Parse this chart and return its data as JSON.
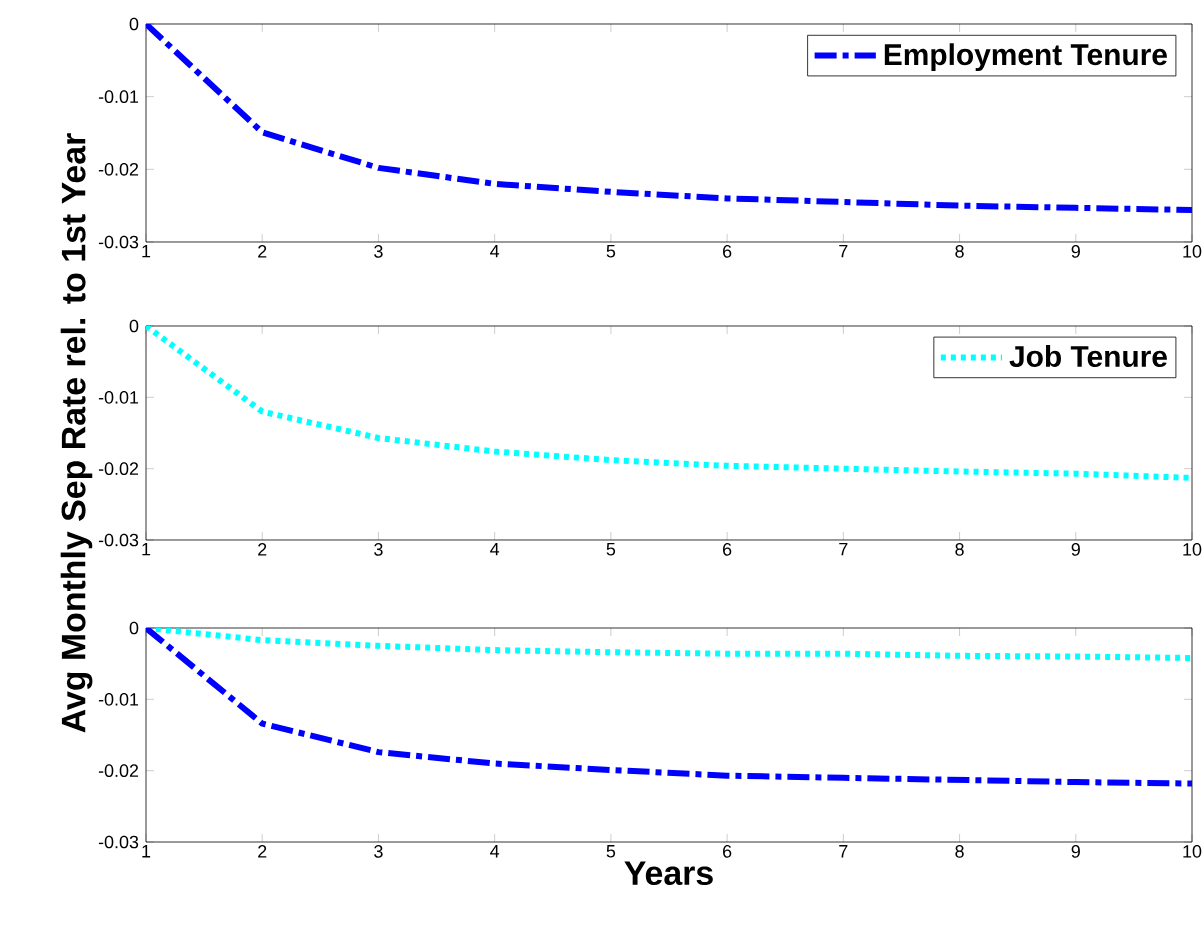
{
  "chart_data": [
    {
      "type": "line",
      "xlim": [
        1,
        10
      ],
      "xticks": [
        1,
        2,
        3,
        4,
        5,
        6,
        7,
        8,
        9,
        10
      ],
      "ylim": [
        -0.03,
        0
      ],
      "yticks": [
        -0.03,
        -0.02,
        -0.01,
        0
      ],
      "legend": "top right",
      "grid": false,
      "series": [
        {
          "name": "Employment Tenure",
          "color": "#0000ff",
          "line_style": "dashed",
          "x": [
            1,
            2,
            3,
            4,
            5,
            6,
            7,
            8,
            9,
            10
          ],
          "values": [
            0,
            -0.0149,
            -0.0198,
            -0.022,
            -0.0231,
            -0.024,
            -0.0245,
            -0.025,
            -0.0253,
            -0.0256
          ]
        }
      ]
    },
    {
      "type": "line",
      "ylabel": "Avg Monthly Sep Rate rel. to 1st Year",
      "xlim": [
        1,
        10
      ],
      "xticks": [
        1,
        2,
        3,
        4,
        5,
        6,
        7,
        8,
        9,
        10
      ],
      "ylim": [
        -0.03,
        0
      ],
      "yticks": [
        -0.03,
        -0.02,
        -0.01,
        0
      ],
      "legend": "top right",
      "grid": false,
      "series": [
        {
          "name": "Job Tenure",
          "color": "#00ffff",
          "line_style": "dotted",
          "x": [
            1,
            2,
            3,
            4,
            5,
            6,
            7,
            8,
            9,
            10
          ],
          "values": [
            0,
            -0.012,
            -0.0157,
            -0.0176,
            -0.0188,
            -0.0196,
            -0.02,
            -0.0204,
            -0.0207,
            -0.0213
          ]
        }
      ]
    },
    {
      "type": "line",
      "xlabel": "Years",
      "xlim": [
        1,
        10
      ],
      "xticks": [
        1,
        2,
        3,
        4,
        5,
        6,
        7,
        8,
        9,
        10
      ],
      "ylim": [
        -0.03,
        0
      ],
      "yticks": [
        -0.03,
        -0.02,
        -0.01,
        0
      ],
      "grid": false,
      "series": [
        {
          "color": "#00ffff",
          "line_style": "dotted",
          "x": [
            1,
            2,
            3,
            4,
            5,
            6,
            7,
            8,
            9,
            10
          ],
          "values": [
            0,
            -0.0017,
            -0.0025,
            -0.0031,
            -0.0034,
            -0.0036,
            -0.0036,
            -0.0039,
            -0.004,
            -0.0042
          ]
        },
        {
          "color": "#0000ff",
          "line_style": "dashed",
          "x": [
            1,
            2,
            3,
            4,
            5,
            6,
            7,
            8,
            9,
            10
          ],
          "values": [
            0,
            -0.0134,
            -0.0174,
            -0.019,
            -0.0199,
            -0.0207,
            -0.021,
            -0.0213,
            -0.0216,
            -0.0218
          ]
        }
      ]
    }
  ]
}
